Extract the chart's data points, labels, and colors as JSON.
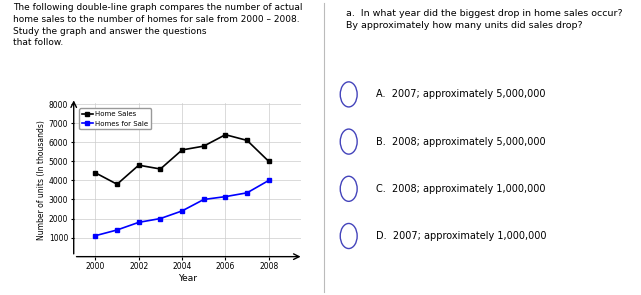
{
  "title_text": "The following double-line graph compares the number of actual\nhome sales to the number of homes for sale from 2000 – 2008.\nStudy the graph and answer the questions\nthat follow.",
  "question_text": "a.  In what year did the biggest drop in home sales occur?\nBy approximately how many units did sales drop?",
  "options": [
    "A.  2007; approximately 5,000,000",
    "B.  2008; approximately 5,000,000",
    "C.  2008; approximately 1,000,000",
    "D.  2007; approximately 1,000,000"
  ],
  "years_home_sales": [
    2000,
    2001,
    2002,
    2003,
    2004,
    2005,
    2006,
    2007,
    2008
  ],
  "home_sales": [
    4400,
    3800,
    4800,
    4600,
    5600,
    5800,
    6400,
    6100,
    5000
  ],
  "years_homes_for_sale": [
    2000,
    2001,
    2002,
    2003,
    2004,
    2005,
    2006,
    2007,
    2008
  ],
  "homes_for_sale": [
    1100,
    1400,
    1800,
    2000,
    2400,
    3000,
    3150,
    3350,
    4000
  ],
  "home_sales_color": "#000000",
  "homes_for_sale_color": "#0000ff",
  "xlabel": "Year",
  "ylabel": "Number of units (In thousands)",
  "ylim_min": 0,
  "ylim_max": 8000,
  "yticks": [
    1000,
    2000,
    3000,
    4000,
    5000,
    6000,
    7000,
    8000
  ],
  "xticks": [
    2000,
    2002,
    2004,
    2006,
    2008
  ],
  "legend_home_sales": "Home Sales",
  "legend_homes_for_sale": "Homes for Sale",
  "bg_color": "#ffffff",
  "grid_color": "#cccccc",
  "divider_color": "#bbbbbb"
}
